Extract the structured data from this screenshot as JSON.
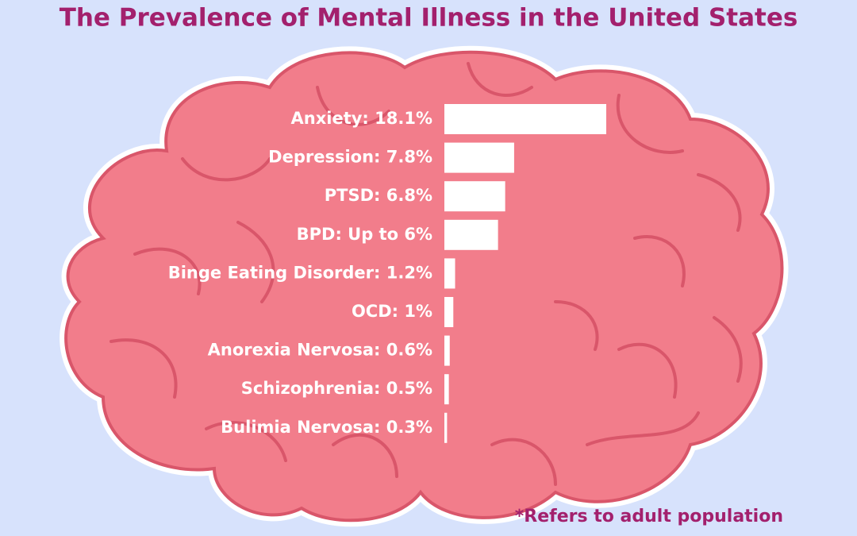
{
  "chart_data": {
    "type": "bar",
    "orientation": "horizontal",
    "title": "The Prevalence of Mental Illness in the United States",
    "categories": [
      "Anxiety: 18.1%",
      "Depression: 7.8%",
      "PTSD: 6.8%",
      "BPD: Up to 6%",
      "Binge Eating Disorder: 1.2%",
      "OCD: 1%",
      "Anorexia Nervosa: 0.6%",
      "Schizophrenia: 0.5%",
      "Bulimia Nervosa: 0.3%"
    ],
    "values": [
      18.1,
      7.8,
      6.8,
      6,
      1.2,
      1,
      0.6,
      0.5,
      0.3
    ],
    "color": "#ffffff",
    "footnote": "*Refers to adult population"
  }
}
